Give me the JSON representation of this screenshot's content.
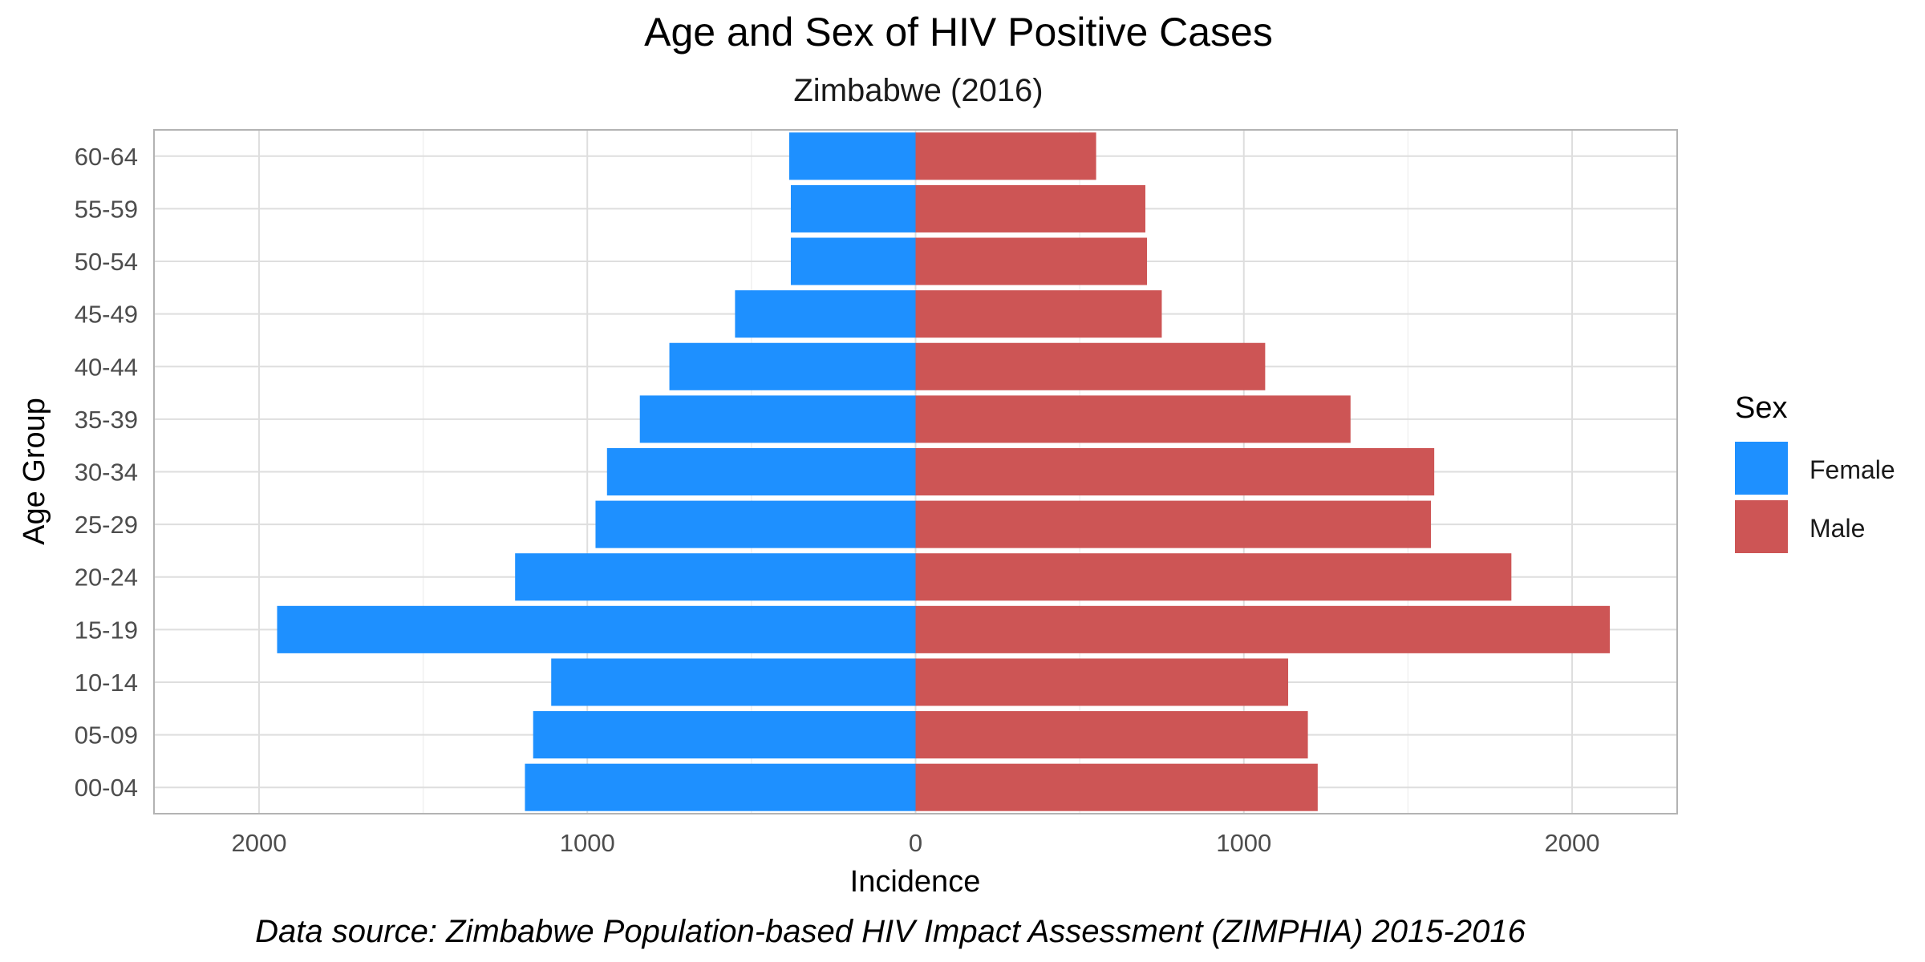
{
  "chart_data": {
    "type": "bar",
    "orientation": "horizontal",
    "title": "Age and Sex of HIV Positive Cases",
    "subtitle": "Zimbabwe (2016)",
    "xlabel": "Incidence",
    "ylabel": "Age Group",
    "caption": "Data source: Zimbabwe Population-based HIV Impact Assessment (ZIMPHIA) 2015-2016",
    "categories": [
      "00-04",
      "05-09",
      "10-14",
      "15-19",
      "20-24",
      "25-29",
      "30-34",
      "35-39",
      "40-44",
      "45-49",
      "50-54",
      "55-59",
      "60-64"
    ],
    "series": [
      {
        "name": "Female",
        "color": "#1e90ff",
        "direction": "left",
        "values": [
          1190,
          1165,
          1110,
          1945,
          1220,
          975,
          940,
          840,
          750,
          550,
          380,
          380,
          385
        ]
      },
      {
        "name": "Male",
        "color": "#cd5555",
        "direction": "right",
        "values": [
          1225,
          1195,
          1135,
          2115,
          1815,
          1570,
          1580,
          1325,
          1065,
          750,
          705,
          700,
          550
        ]
      }
    ],
    "xlim": [
      -2320,
      2320
    ],
    "xticks": [
      -2000,
      -1000,
      0,
      1000,
      2000
    ],
    "xtick_labels": [
      "2000",
      "1000",
      "0",
      "1000",
      "2000"
    ],
    "xticks_minor": [
      -1500,
      -500,
      500,
      1500
    ],
    "grid": true,
    "legend": {
      "title": "Sex",
      "position": "right"
    }
  }
}
